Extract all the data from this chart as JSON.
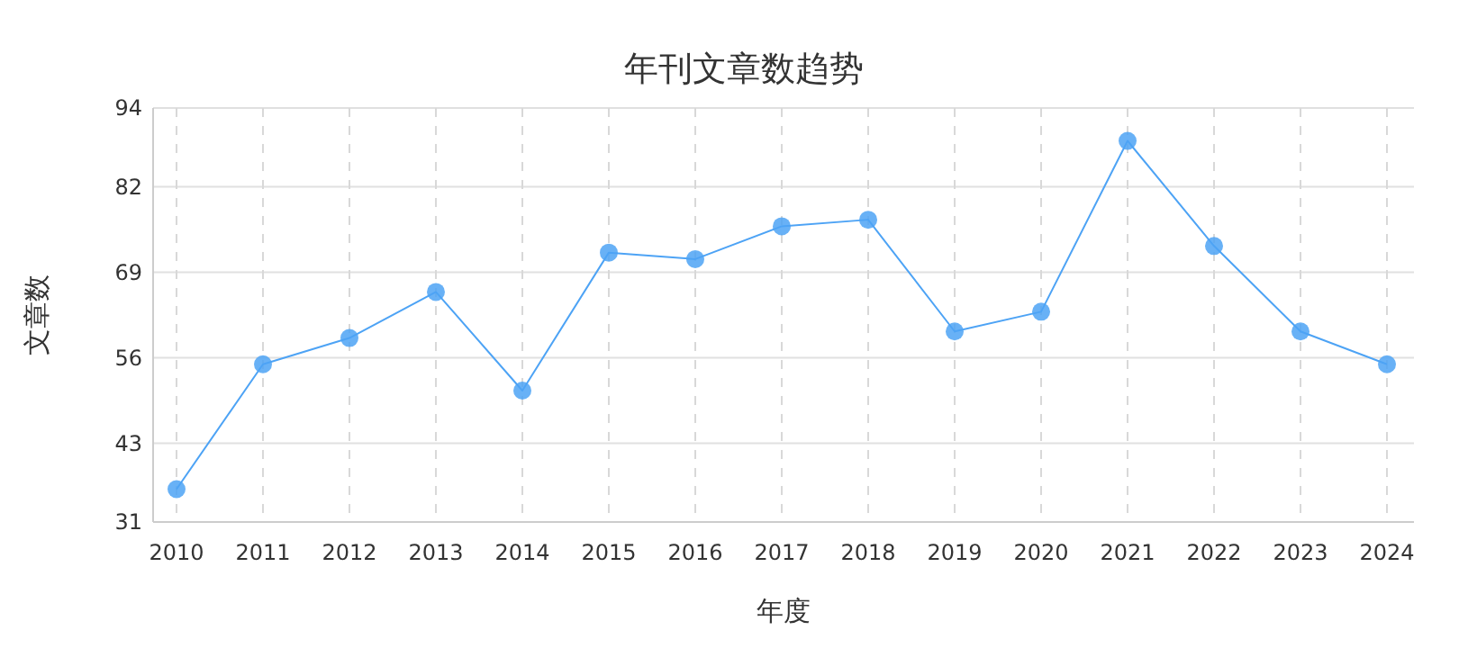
{
  "chart_data": {
    "type": "line",
    "title": "年刊文章数趋势",
    "xlabel": "年度",
    "ylabel": "文章数",
    "categories": [
      "2010",
      "2011",
      "2012",
      "2013",
      "2014",
      "2015",
      "2016",
      "2017",
      "2018",
      "2019",
      "2020",
      "2021",
      "2022",
      "2023",
      "2024"
    ],
    "series": [
      {
        "color": "#4da3f5",
        "values": [
          36,
          55,
          59,
          66,
          51,
          72,
          71,
          76,
          77,
          60,
          63,
          89,
          73,
          60,
          55
        ]
      }
    ],
    "ylim": [
      31,
      94
    ],
    "yticks": [
      31,
      43,
      56,
      69,
      82,
      94
    ],
    "grid": true,
    "marker": "circle",
    "line_style": "solid"
  }
}
